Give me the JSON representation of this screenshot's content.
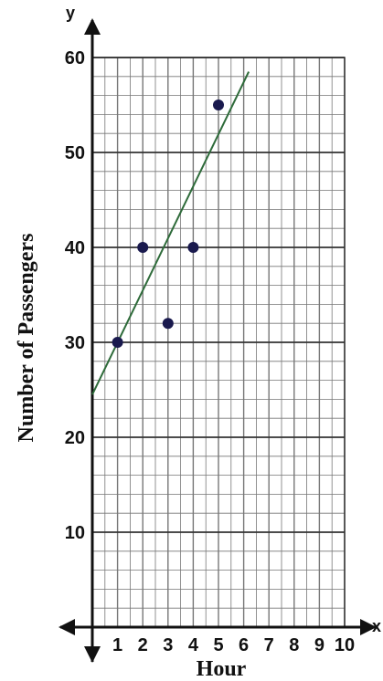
{
  "chart_data": {
    "type": "scatter",
    "xlabel": "Hour",
    "ylabel": "Number of Passengers",
    "x_axis_letter": "x",
    "y_axis_letter": "y",
    "xlim": [
      0,
      10
    ],
    "ylim": [
      0,
      60
    ],
    "x_ticks": [
      1,
      2,
      3,
      4,
      5,
      6,
      7,
      8,
      9,
      10
    ],
    "y_ticks": [
      10,
      20,
      30,
      40,
      50,
      60
    ],
    "x_tick_labels": [
      "1",
      "2",
      "3",
      "4",
      "5",
      "6",
      "7",
      "8",
      "9",
      "10"
    ],
    "y_tick_labels": [
      "10",
      "20",
      "30",
      "40",
      "50",
      "60"
    ],
    "grid": true,
    "points": [
      {
        "x": 1,
        "y": 30
      },
      {
        "x": 2,
        "y": 40
      },
      {
        "x": 3,
        "y": 32
      },
      {
        "x": 4,
        "y": 40
      },
      {
        "x": 5,
        "y": 55
      }
    ],
    "trend_line": {
      "x1": 0,
      "y1": 24.5,
      "x2": 6.2,
      "y2": 58.5
    },
    "colors": {
      "grid": "#777777",
      "axis": "#111111",
      "points": "#1a1a4e",
      "trend_line": "#2e6b3a"
    }
  }
}
